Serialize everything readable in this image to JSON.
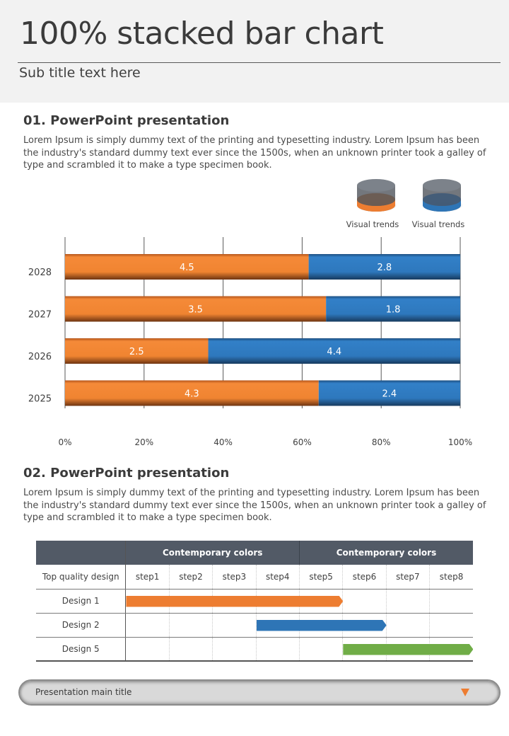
{
  "header": {
    "title": "100% stacked bar chart",
    "subtitle": "Sub title text here"
  },
  "section1": {
    "title": "01. PowerPoint presentation",
    "body": "Lorem Ipsum is simply dummy text of the printing and typesetting industry. Lorem Ipsum has been the industry's standard dummy text ever since the 1500s, when an unknown printer took a galley of type and scrambled it to make a type specimen book."
  },
  "legend": [
    {
      "label": "Visual trends",
      "color": "#ed7d31",
      "icon": "orange-cylinder-icon"
    },
    {
      "label": "Visual trends",
      "color": "#2e75b6",
      "icon": "blue-cylinder-icon"
    }
  ],
  "chart_data": {
    "type": "bar",
    "orientation": "horizontal",
    "stacked": "percent",
    "title": "",
    "xlabel": "",
    "ylabel": "",
    "categories": [
      "2028",
      "2027",
      "2026",
      "2025"
    ],
    "series": [
      {
        "name": "Visual trends",
        "color": "#ed7d31",
        "values": [
          4.5,
          3.5,
          2.5,
          4.3
        ]
      },
      {
        "name": "Visual trends",
        "color": "#2e75b6",
        "values": [
          2.8,
          1.8,
          4.4,
          2.4
        ]
      }
    ],
    "xlim": [
      0,
      100
    ],
    "xticks": [
      "0%",
      "20%",
      "40%",
      "60%",
      "80%",
      "100%"
    ],
    "grid": true,
    "legend_position": "top-right",
    "data_labels": true
  },
  "section2": {
    "title": "02. PowerPoint presentation",
    "body": "Lorem Ipsum is simply dummy text of the printing and typesetting industry. Lorem Ipsum has been the industry's standard dummy text ever since the 1500s, when an unknown printer took a galley of type and scrambled it to make a type specimen book."
  },
  "gantt": {
    "group_headers": [
      "Contemporary colors",
      "Contemporary colors"
    ],
    "corner_label": "Top quality design",
    "steps": [
      "step1",
      "step2",
      "step3",
      "step4",
      "step5",
      "step6",
      "step7",
      "step8"
    ],
    "rows": [
      {
        "label": "Design 1",
        "start_step": 1,
        "end_step": 5,
        "color": "#ed7d31"
      },
      {
        "label": "Design 2",
        "start_step": 4,
        "end_step": 6,
        "color": "#2e75b6"
      },
      {
        "label": "Design 5",
        "start_step": 6,
        "end_step": 8,
        "color": "#70ad47"
      }
    ]
  },
  "footer": {
    "title": "Presentation main title",
    "arrow_icon": "triangle-down-icon",
    "accent": "#ed7d31"
  }
}
